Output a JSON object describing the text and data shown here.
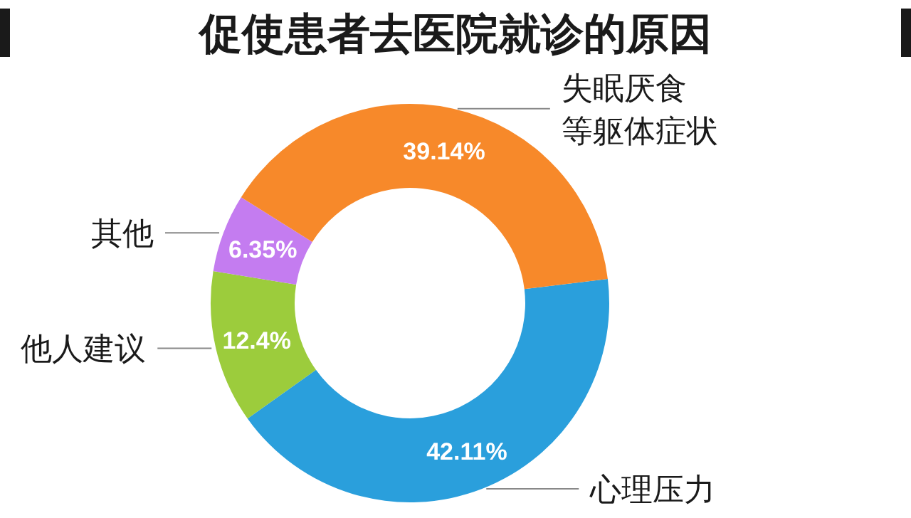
{
  "chart_data": {
    "type": "donut",
    "title": "促使患者去医院就诊的原因",
    "categories": [
      "心理压力",
      "他人建议",
      "其他",
      "失眠厌食等躯体症状"
    ],
    "values": [
      42.11,
      12.4,
      6.35,
      39.14
    ],
    "colors": [
      "#2a9fdc",
      "#9ccc3c",
      "#c47cf0",
      "#f7892a"
    ],
    "value_labels": [
      "42.11%",
      "12.4%",
      "6.35%",
      "39.14%"
    ]
  }
}
